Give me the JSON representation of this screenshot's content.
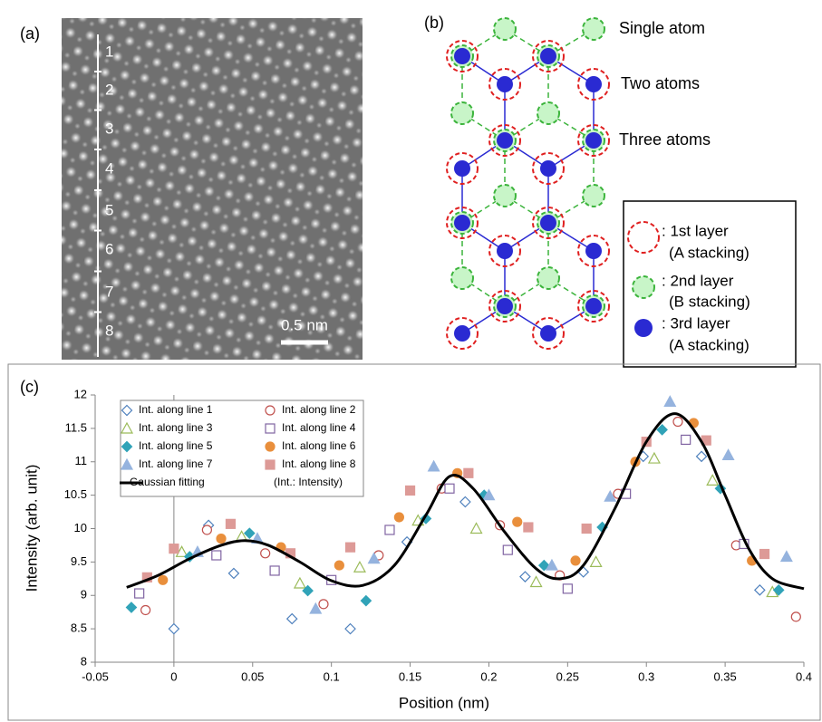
{
  "panel_a": {
    "label": "(a)",
    "line_numbers": [
      "1",
      "2",
      "3",
      "4",
      "5",
      "6",
      "7",
      "8"
    ],
    "scale_bar": "0.5 nm"
  },
  "panel_b": {
    "label": "(b)",
    "annotations": [
      "Single atom",
      "Two atoms",
      "Three atoms"
    ],
    "legend": [
      ": 1st layer",
      "(A stacking)",
      ": 2nd layer",
      "(B stacking)",
      ": 3rd layer",
      "(A stacking)"
    ]
  },
  "chart_data": {
    "type": "scatter",
    "panel_label": "(c)",
    "x_label": "Position (nm)",
    "y_label": "Intensity (arb. unit)",
    "note": "(Int.: Intensity)",
    "xlim": [
      -0.05,
      0.4
    ],
    "xticks": [
      -0.05,
      0,
      0.05,
      0.1,
      0.15,
      0.2,
      0.25,
      0.3,
      0.35,
      0.4
    ],
    "ylim": [
      8,
      12
    ],
    "yticks": [
      8,
      8.5,
      9,
      9.5,
      10,
      10.5,
      11,
      11.5,
      12
    ],
    "series": [
      {
        "name": "Int. along line 1",
        "color": "#4f81bd",
        "marker": "diamond",
        "filled": false,
        "x": [
          0.0,
          0.022,
          0.038,
          0.075,
          0.112,
          0.148,
          0.185,
          0.223,
          0.26,
          0.298,
          0.335,
          0.372
        ],
        "values": [
          8.5,
          10.05,
          9.33,
          8.65,
          8.5,
          9.8,
          10.4,
          9.28,
          9.35,
          11.08,
          11.08,
          9.08
        ]
      },
      {
        "name": "Int. along line 2",
        "color": "#c0504d",
        "marker": "circle",
        "filled": false,
        "x": [
          -0.018,
          0.021,
          0.058,
          0.095,
          0.13,
          0.17,
          0.207,
          0.245,
          0.282,
          0.32,
          0.357,
          0.395
        ],
        "values": [
          8.78,
          9.98,
          9.63,
          8.87,
          9.6,
          10.6,
          10.05,
          9.3,
          10.52,
          11.6,
          9.75,
          8.68
        ]
      },
      {
        "name": "Int. along line 3",
        "color": "#9bbb59",
        "marker": "triangle",
        "filled": false,
        "x": [
          0.005,
          0.043,
          0.08,
          0.118,
          0.155,
          0.192,
          0.23,
          0.268,
          0.305,
          0.342,
          0.38
        ],
        "values": [
          9.65,
          9.88,
          9.18,
          9.42,
          10.12,
          10.0,
          9.2,
          9.5,
          11.05,
          10.72,
          9.05
        ]
      },
      {
        "name": "Int. along line 4",
        "color": "#8064a2",
        "marker": "square",
        "filled": false,
        "x": [
          -0.022,
          0.027,
          0.064,
          0.1,
          0.137,
          0.175,
          0.212,
          0.25,
          0.287,
          0.325,
          0.362
        ],
        "values": [
          9.03,
          9.6,
          9.37,
          9.23,
          9.98,
          10.6,
          9.68,
          9.1,
          10.52,
          11.33,
          9.77
        ]
      },
      {
        "name": "Int. along line 5",
        "color": "#31a3b8",
        "marker": "diamond",
        "filled": true,
        "x": [
          -0.027,
          0.01,
          0.048,
          0.085,
          0.122,
          0.16,
          0.197,
          0.235,
          0.272,
          0.31,
          0.347,
          0.384
        ],
        "values": [
          8.82,
          9.58,
          9.93,
          9.07,
          8.92,
          10.15,
          10.5,
          9.45,
          10.02,
          11.48,
          10.6,
          9.08
        ]
      },
      {
        "name": "Int. along line 6",
        "color": "#e98f3c",
        "marker": "circle",
        "filled": true,
        "x": [
          -0.007,
          0.03,
          0.068,
          0.105,
          0.143,
          0.18,
          0.218,
          0.255,
          0.293,
          0.33,
          0.367
        ],
        "values": [
          9.23,
          9.85,
          9.72,
          9.45,
          10.17,
          10.83,
          10.1,
          9.52,
          11.0,
          11.58,
          9.52
        ]
      },
      {
        "name": "Int. along line 7",
        "color": "#95b3de",
        "marker": "triangle",
        "filled": true,
        "x": [
          0.015,
          0.053,
          0.09,
          0.127,
          0.165,
          0.2,
          0.24,
          0.277,
          0.315,
          0.352,
          0.389
        ],
        "values": [
          9.65,
          9.85,
          8.8,
          9.55,
          10.93,
          10.5,
          9.45,
          10.48,
          11.9,
          11.1,
          9.58
        ]
      },
      {
        "name": "Int. along line 8",
        "color": "#dd9a97",
        "marker": "square",
        "filled": true,
        "x": [
          -0.017,
          0.0,
          0.036,
          0.074,
          0.112,
          0.15,
          0.187,
          0.225,
          0.262,
          0.3,
          0.338,
          0.375
        ],
        "values": [
          9.27,
          9.7,
          10.07,
          9.63,
          9.72,
          10.57,
          10.83,
          10.02,
          10.0,
          11.3,
          11.32,
          9.62
        ]
      },
      {
        "name": "Gaussian fitting",
        "color": "#000000",
        "marker": "line",
        "filled": false,
        "x": [
          -0.03,
          -0.01,
          0.01,
          0.03,
          0.045,
          0.06,
          0.08,
          0.1,
          0.12,
          0.14,
          0.16,
          0.175,
          0.19,
          0.21,
          0.23,
          0.245,
          0.26,
          0.28,
          0.3,
          0.318,
          0.335,
          0.35,
          0.365,
          0.38,
          0.4
        ],
        "values": [
          9.12,
          9.3,
          9.55,
          9.75,
          9.82,
          9.75,
          9.5,
          9.22,
          9.15,
          9.45,
          10.2,
          10.78,
          10.6,
          9.95,
          9.4,
          9.25,
          9.45,
          10.3,
          11.3,
          11.72,
          11.3,
          10.5,
          9.7,
          9.25,
          9.1
        ]
      }
    ]
  }
}
